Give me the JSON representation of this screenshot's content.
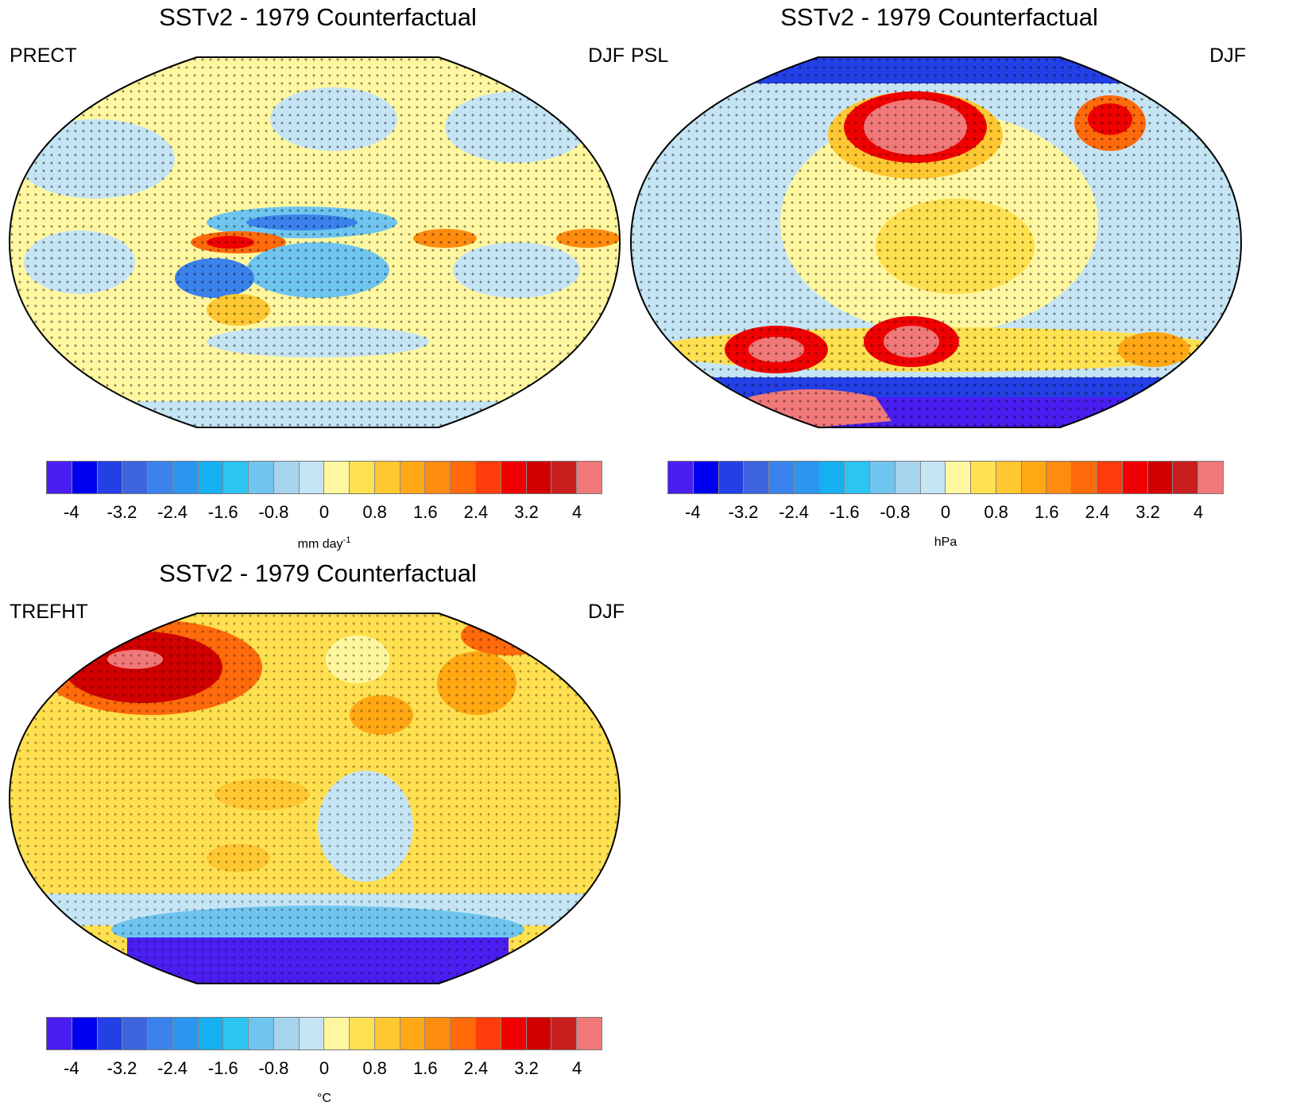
{
  "colorbar": {
    "colors": [
      "#4a1ef0",
      "#0000f0",
      "#233fe6",
      "#3e64e0",
      "#3a82ec",
      "#2a96f0",
      "#14b0f2",
      "#2cc4f0",
      "#6fc5ef",
      "#a6d4ee",
      "#c6e5f4",
      "#fff7a0",
      "#ffe050",
      "#ffc832",
      "#ffa814",
      "#ff8c0f",
      "#ff6a0a",
      "#ff3c0a",
      "#f00000",
      "#d00000",
      "#c81e1e",
      "#f07878"
    ],
    "ticks": [
      "-4",
      "-3.2",
      "-2.4",
      "-1.6",
      "-0.8",
      "0",
      "0.8",
      "1.6",
      "2.4",
      "3.2",
      "4"
    ]
  },
  "panels": [
    {
      "title": "SSTv2 - 1979 Counterfactual",
      "variable": "PRECT",
      "season": "DJF",
      "units": "mm day",
      "units_sup": "-1"
    },
    {
      "title": "SSTv2 - 1979 Counterfactual",
      "variable": "PSL",
      "season": "DJF",
      "units": "hPa",
      "units_sup": ""
    },
    {
      "title": "SSTv2 - 1979 Counterfactual",
      "variable": "TREFHT",
      "season": "DJF",
      "units": "°C",
      "units_sup": ""
    }
  ]
}
